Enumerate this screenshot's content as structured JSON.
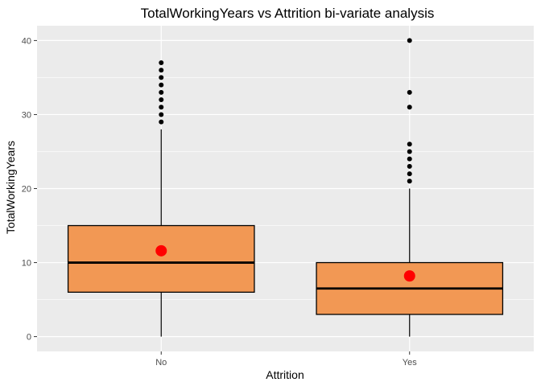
{
  "chart_data": {
    "type": "box",
    "title": "TotalWorkingYears vs Attrition bi-variate analysis",
    "xlabel": "Attrition",
    "ylabel": "TotalWorkingYears",
    "ylim": [
      -2.0,
      42.0
    ],
    "yticks": [
      0,
      10,
      20,
      30,
      40
    ],
    "categories": [
      "No",
      "Yes"
    ],
    "boxes": [
      {
        "category": "No",
        "min": 0,
        "q1": 6,
        "median": 10,
        "q3": 15,
        "max": 28,
        "mean": 11.6,
        "outliers": [
          29,
          30,
          31,
          32,
          33,
          34,
          35,
          36,
          37
        ]
      },
      {
        "category": "Yes",
        "min": 0,
        "q1": 3,
        "median": 6.5,
        "q3": 10,
        "max": 20,
        "mean": 8.2,
        "outliers": [
          21,
          22,
          23,
          24,
          25,
          26,
          31,
          33,
          40
        ]
      }
    ],
    "colors": {
      "panel_background": "#ebebeb",
      "grid": "#ffffff",
      "box_fill": "#f29854",
      "box_line": "#000000",
      "mean_point": "#ff0000",
      "outlier": "#000000"
    },
    "grid": true,
    "legend": "none"
  }
}
